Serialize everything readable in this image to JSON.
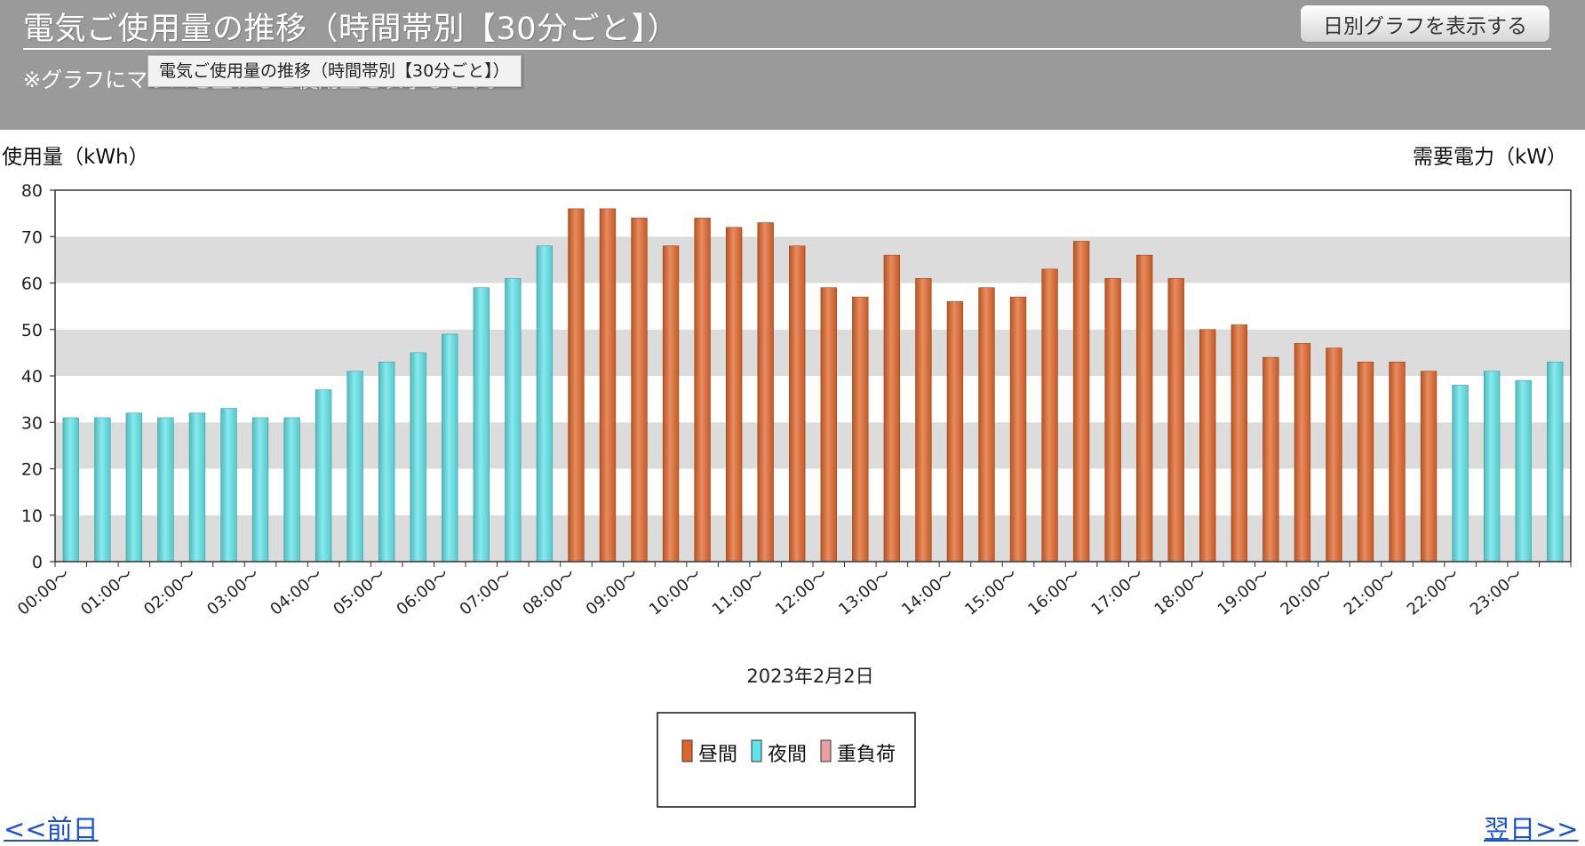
{
  "header": {
    "title": "電気ご使用量の推移（時間帯別【30分ごと】）",
    "daily_button_label": "日別グラフを表示する",
    "note_text": "※グラフにマウスを重ねると使用量を表示します。",
    "tooltip_text": "電気ご使用量の推移（時間帯別【30分ごと】）"
  },
  "nav": {
    "prev_label": "<<前日",
    "next_label": "翌日>>"
  },
  "chart_data": {
    "type": "bar",
    "ylabel_left": "使用量（kWh）",
    "ylabel_right": "需要電力（kW）",
    "xlabel": "2023年2月2日",
    "ylim": [
      0,
      80
    ],
    "yticks": [
      0,
      10,
      20,
      30,
      40,
      50,
      60,
      70,
      80
    ],
    "x_tick_labels": [
      "00:00～",
      "01:00～",
      "02:00～",
      "03:00～",
      "04:00～",
      "05:00～",
      "06:00～",
      "07:00～",
      "08:00～",
      "09:00～",
      "10:00～",
      "11:00～",
      "12:00～",
      "13:00～",
      "14:00～",
      "15:00～",
      "16:00～",
      "17:00～",
      "18:00～",
      "19:00～",
      "20:00～",
      "21:00～",
      "22:00～",
      "23:00～"
    ],
    "grid": "alternating horizontal bands",
    "legend_position": "bottom-center",
    "legend": [
      {
        "name": "昼間",
        "color": "#e0652a"
      },
      {
        "name": "夜間",
        "color": "#5fe3e8"
      },
      {
        "name": "重負荷",
        "color": "#e8a0a0"
      }
    ],
    "values": [
      31,
      31,
      32,
      31,
      32,
      33,
      31,
      31,
      37,
      41,
      43,
      45,
      49,
      59,
      61,
      68,
      76,
      76,
      74,
      68,
      74,
      72,
      73,
      68,
      59,
      57,
      66,
      61,
      56,
      59,
      57,
      63,
      69,
      61,
      66,
      61,
      50,
      51,
      44,
      47,
      46,
      43,
      43,
      41,
      38,
      41,
      39,
      43
    ],
    "series_by_bar": [
      "夜間",
      "夜間",
      "夜間",
      "夜間",
      "夜間",
      "夜間",
      "夜間",
      "夜間",
      "夜間",
      "夜間",
      "夜間",
      "夜間",
      "夜間",
      "夜間",
      "夜間",
      "夜間",
      "昼間",
      "昼間",
      "昼間",
      "昼間",
      "昼間",
      "昼間",
      "昼間",
      "昼間",
      "昼間",
      "昼間",
      "昼間",
      "昼間",
      "昼間",
      "昼間",
      "昼間",
      "昼間",
      "昼間",
      "昼間",
      "昼間",
      "昼間",
      "昼間",
      "昼間",
      "昼間",
      "昼間",
      "昼間",
      "昼間",
      "昼間",
      "昼間",
      "夜間",
      "夜間",
      "夜間",
      "夜間"
    ]
  }
}
